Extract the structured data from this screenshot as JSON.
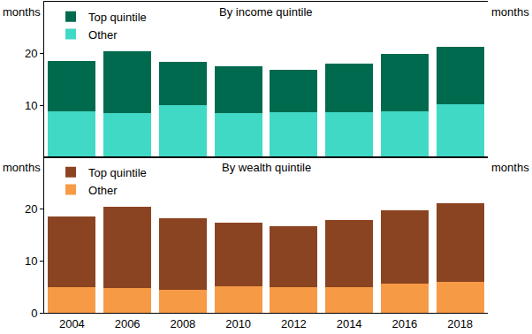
{
  "chart_data": [
    {
      "type": "bar",
      "title": "By income quintile",
      "ylabel": "months",
      "categories": [
        "2004",
        "2006",
        "2008",
        "2010",
        "2012",
        "2014",
        "2016",
        "2018"
      ],
      "series": [
        {
          "name": "Other",
          "color": "#40d9c6",
          "values": [
            8.8,
            8.5,
            10.0,
            8.5,
            8.7,
            8.7,
            8.8,
            10.2
          ]
        },
        {
          "name": "Top quintile",
          "color": "#006a4e",
          "values": [
            9.8,
            11.9,
            8.4,
            9.1,
            8.2,
            9.4,
            11.1,
            11.1
          ]
        }
      ],
      "stacked": true,
      "ylim": [
        0,
        30
      ],
      "yticks": [
        10,
        20
      ],
      "grid": false,
      "legend": "upper left",
      "tick_labels": "y"
    },
    {
      "type": "bar",
      "title": "By wealth quintile",
      "ylabel": "months",
      "categories": [
        "2004",
        "2006",
        "2008",
        "2010",
        "2012",
        "2014",
        "2016",
        "2018"
      ],
      "series": [
        {
          "name": "Other",
          "color": "#f79a45",
          "values": [
            4.9,
            4.7,
            4.5,
            5.1,
            5.0,
            5.0,
            5.7,
            6.0
          ]
        },
        {
          "name": "Top quintile",
          "color": "#8b4422",
          "values": [
            13.7,
            15.7,
            13.7,
            12.3,
            11.7,
            12.9,
            14.0,
            15.2
          ]
        }
      ],
      "stacked": true,
      "ylim": [
        0,
        30
      ],
      "yticks": [
        0,
        10,
        20
      ],
      "grid": false,
      "legend": "upper left",
      "tick_labels": true
    }
  ]
}
